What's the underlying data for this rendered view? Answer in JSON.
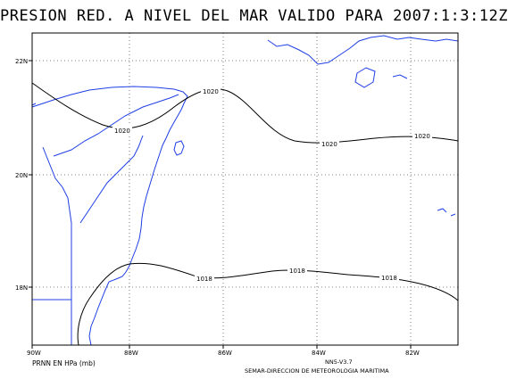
{
  "title": "PRESION RED. A NIVEL DEL MAR VALIDO PARA 2007:1:3:12Z",
  "footer": {
    "units": "PRNN EN HPa (mb)",
    "version": "NN5-V3.7",
    "credit": "SEMAR-DIRECCION DE METEOROLOGIA MARITIMA"
  },
  "axes": {
    "lon_labels": [
      "90W",
      "88W",
      "86W",
      "84W",
      "82W"
    ],
    "lat_labels": [
      "22N",
      "20N",
      "18N"
    ]
  },
  "isobars": [
    {
      "value": 1020,
      "labels": [
        "1020",
        "1020",
        "1020",
        "1020"
      ]
    },
    {
      "value": 1018,
      "labels": [
        "1018",
        "1018",
        "1018"
      ]
    }
  ],
  "colors": {
    "coastline": "#1f3fe6",
    "isobar": "#000000",
    "grid": "#555555",
    "frame": "#000000"
  }
}
